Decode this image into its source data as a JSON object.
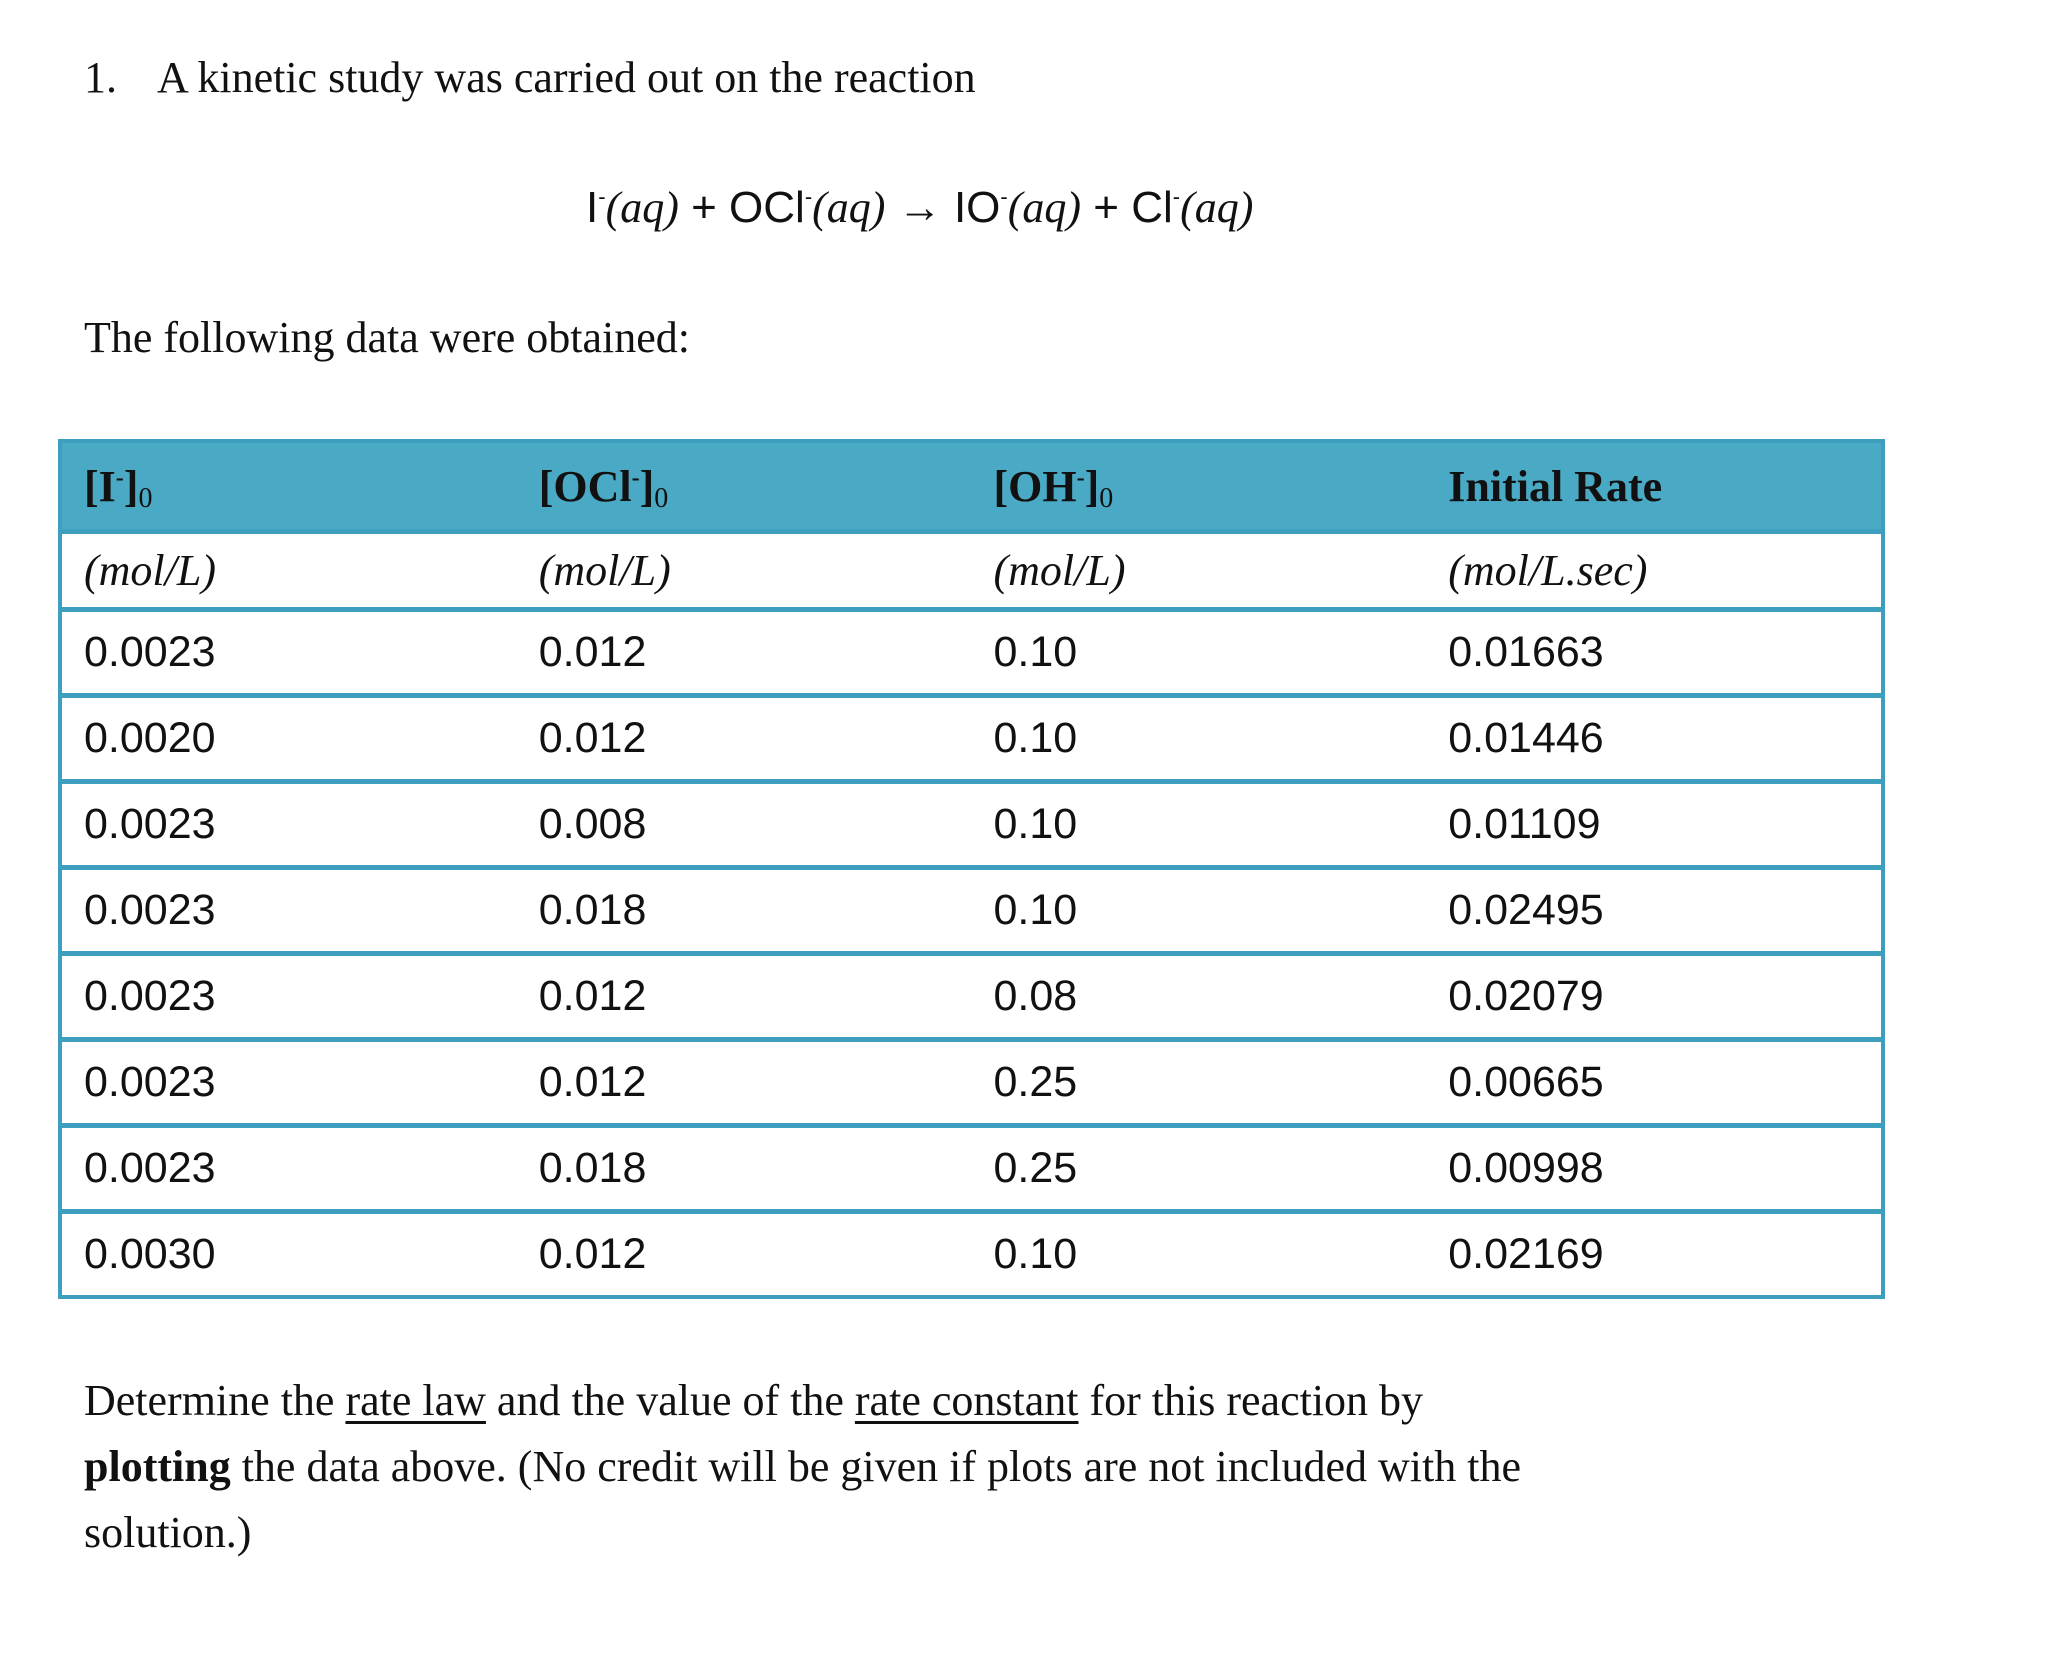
{
  "question": {
    "number": "1.",
    "intro": "A kinetic study was carried out on the reaction"
  },
  "equation": {
    "reactant1": "I",
    "reactant1_charge": "-",
    "reactant1_state": "(aq)",
    "plus1": "+",
    "reactant2": "OCl",
    "reactant2_charge": "-",
    "reactant2_state": "(aq)",
    "arrow": "→",
    "product1": "IO",
    "product1_charge": "-",
    "product1_state": "(aq)",
    "plus2": "+",
    "product2": "Cl",
    "product2_charge": "-",
    "product2_state": "(aq)"
  },
  "following_text": "The following data were obtained:",
  "table": {
    "colors": {
      "header_bg": "#4aaac5",
      "border": "#3d9ebe"
    },
    "headers": [
      {
        "base": "[I",
        "charge": "-",
        "close": "]",
        "sub": "0"
      },
      {
        "base": "[OCl",
        "charge": "-",
        "close": "]",
        "sub": "0"
      },
      {
        "base": "[OH",
        "charge": "-",
        "close": "]",
        "sub": "0"
      },
      {
        "base": "Initial Rate",
        "charge": "",
        "close": "",
        "sub": ""
      }
    ],
    "units": [
      "(mol/L)",
      "(mol/L)",
      "(mol/L)",
      "(mol/L.sec)"
    ],
    "rows": [
      [
        "0.0023",
        "0.012",
        "0.10",
        "0.01663"
      ],
      [
        "0.0020",
        "0.012",
        "0.10",
        "0.01446"
      ],
      [
        "0.0023",
        "0.008",
        "0.10",
        "0.01109"
      ],
      [
        "0.0023",
        "0.018",
        "0.10",
        "0.02495"
      ],
      [
        "0.0023",
        "0.012",
        "0.08",
        "0.02079"
      ],
      [
        "0.0023",
        "0.012",
        "0.25",
        "0.00665"
      ],
      [
        "0.0023",
        "0.018",
        "0.25",
        "0.00998"
      ],
      [
        "0.0030",
        "0.012",
        "0.10",
        "0.02169"
      ]
    ]
  },
  "instructions": {
    "line1_a": "Determine the ",
    "line1_u1": "rate law",
    "line1_b": " and the value of the ",
    "line1_u2": "rate constant",
    "line1_c": " for this reaction by",
    "line2_bold": "plotting",
    "line2_rest": " the data above. (No credit will be given if plots are not included with the",
    "line3": "solution.)"
  }
}
